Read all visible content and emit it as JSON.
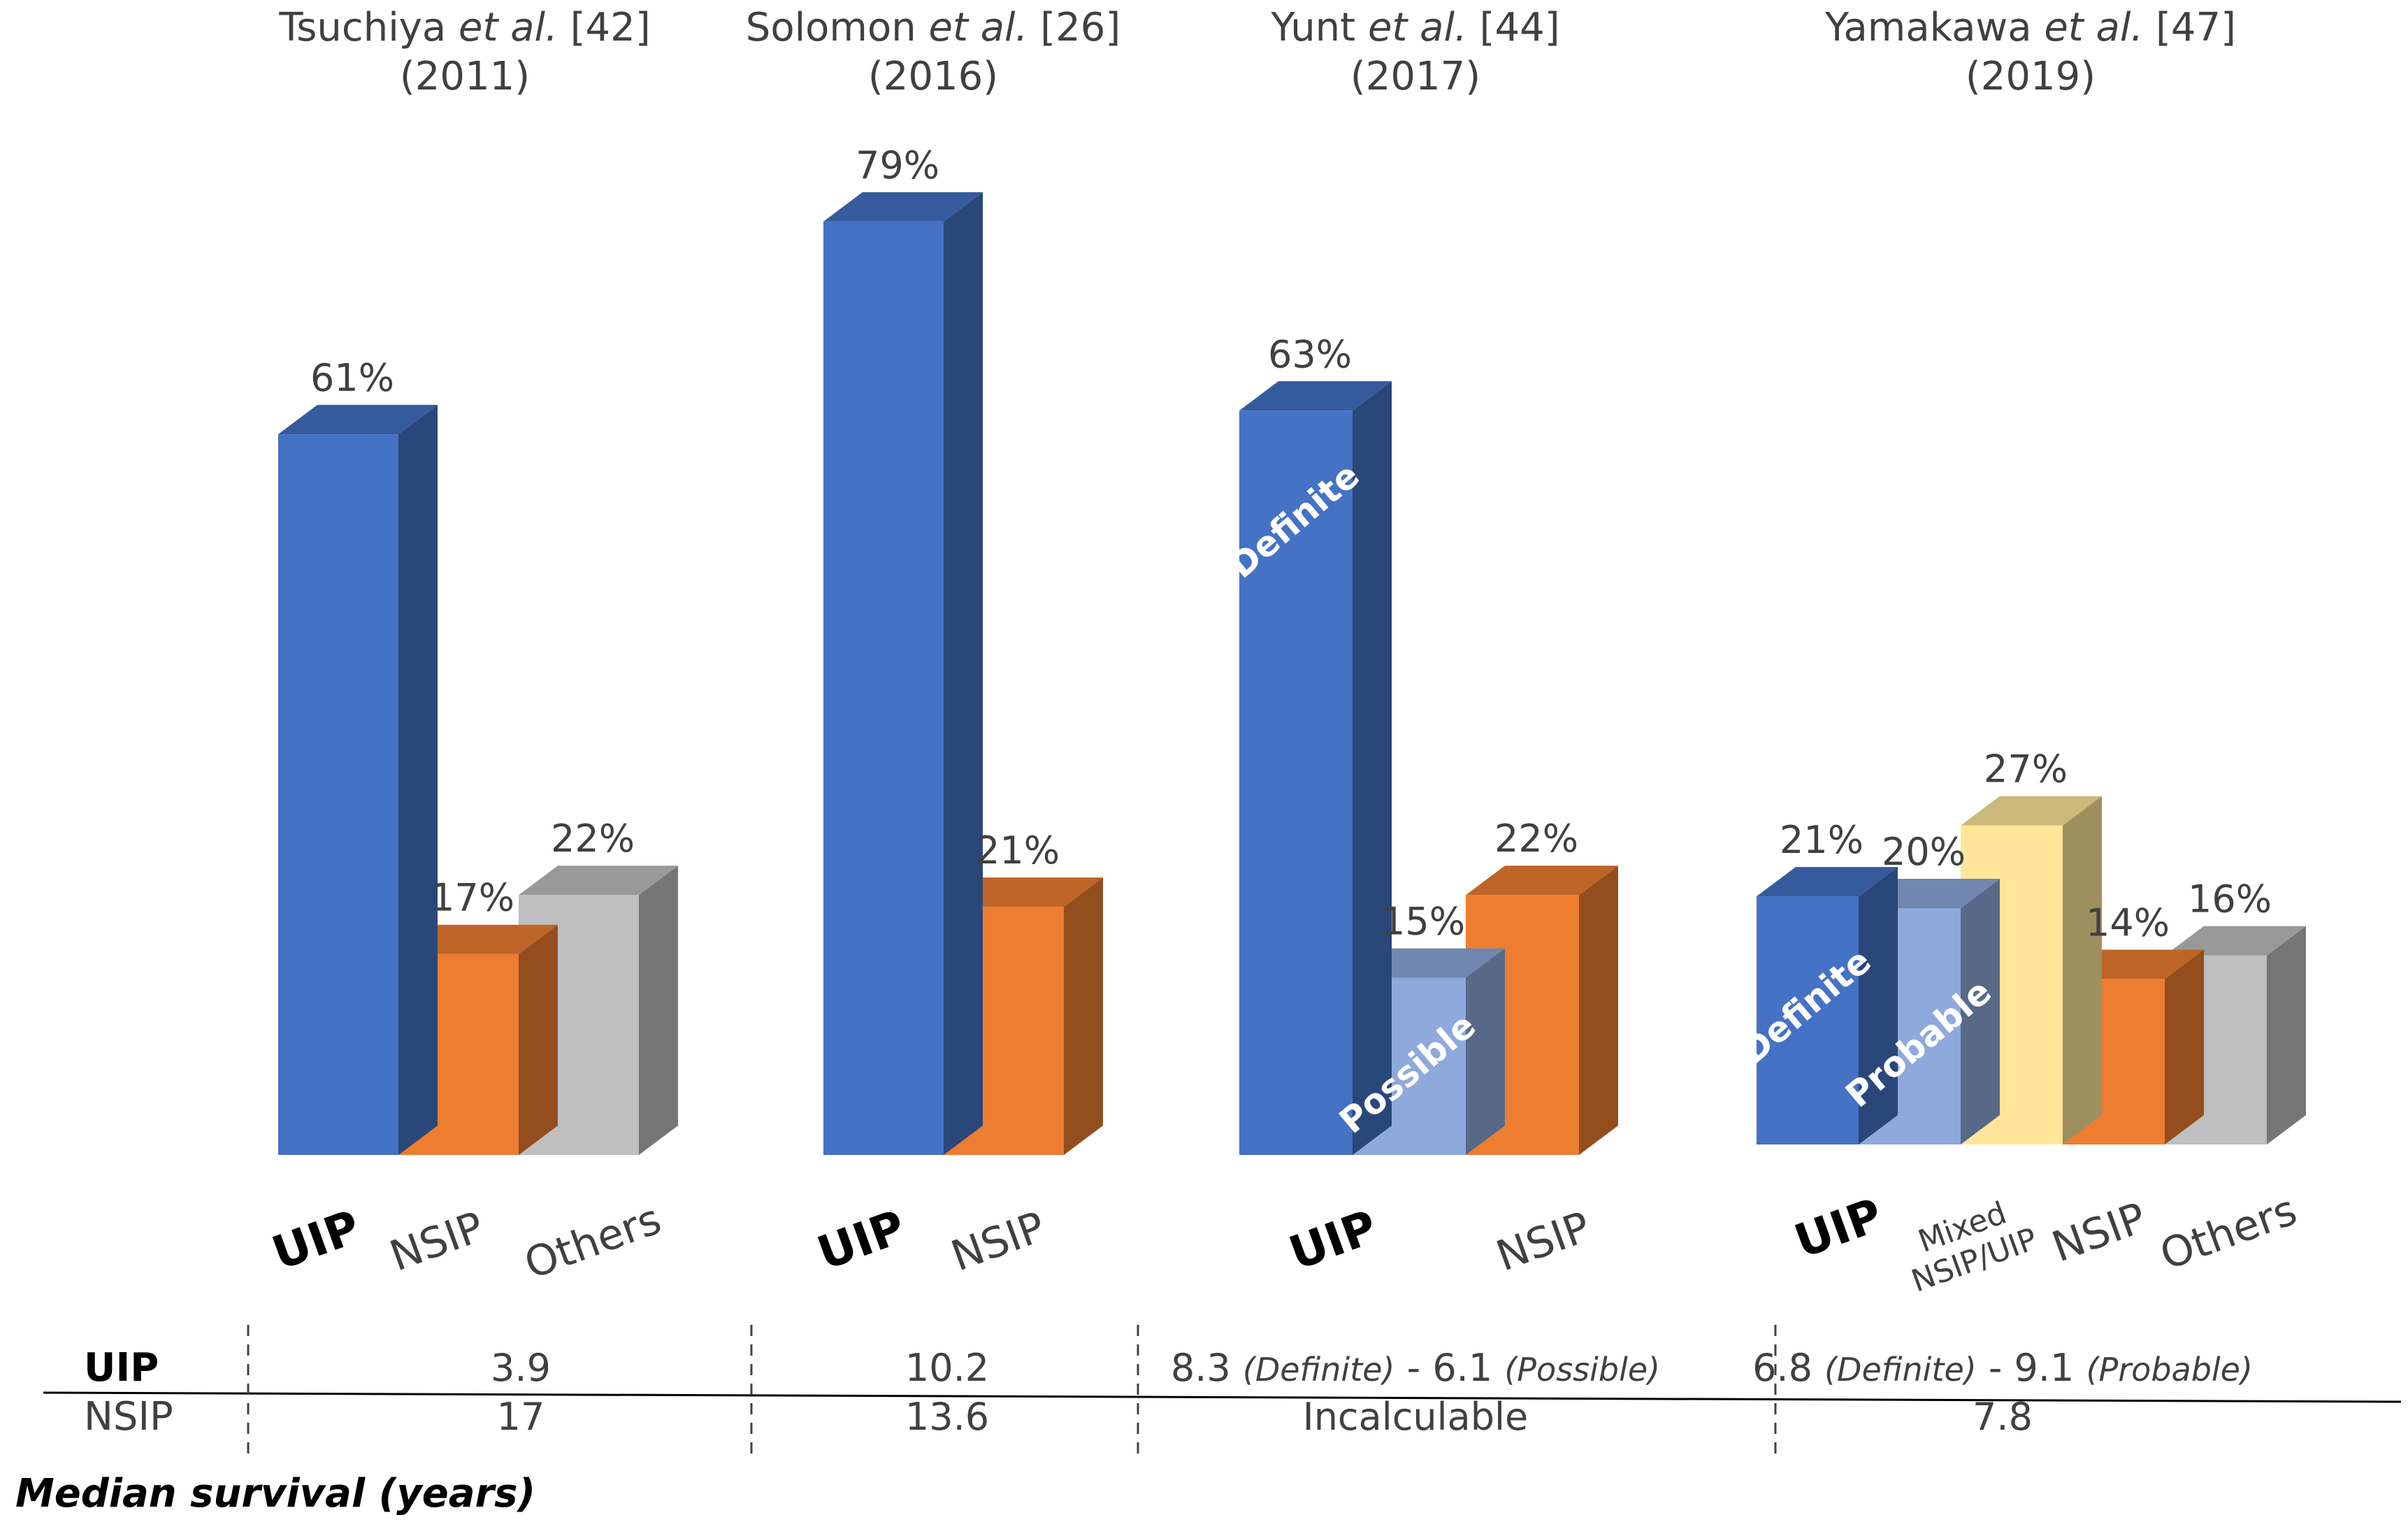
{
  "chart_data": {
    "type": "bar",
    "title": "",
    "ylabel": "",
    "ylim": [
      0,
      100
    ],
    "colors": {
      "uip": "#4472C4",
      "uip_light": "#8EA9DB",
      "nsip": "#ED7D31",
      "others": "#BFBFBF",
      "mixed": "#FFE699"
    },
    "groups": [
      {
        "study_name": "Tsuchiya",
        "etal": "et al.",
        "ref": "[42]",
        "year": "(2011)",
        "bars": [
          {
            "value": 61,
            "label": "61%",
            "color": "uip"
          },
          {
            "value": 17,
            "label": "17%",
            "color": "nsip"
          },
          {
            "value": 22,
            "label": "22%",
            "color": "others"
          }
        ],
        "categories": [
          {
            "text": [
              "UIP"
            ],
            "bold": true
          },
          {
            "text": [
              "NSIP"
            ],
            "bold": false
          },
          {
            "text": [
              "Others"
            ],
            "bold": false
          }
        ]
      },
      {
        "study_name": "Solomon",
        "etal": "et al.",
        "ref": "[26]",
        "year": "(2016)",
        "bars": [
          {
            "value": 79,
            "label": "79%",
            "color": "uip"
          },
          {
            "value": 21,
            "label": "21%",
            "color": "nsip"
          }
        ],
        "categories": [
          {
            "text": [
              "UIP"
            ],
            "bold": true
          },
          {
            "text": [
              "NSIP"
            ],
            "bold": false
          }
        ]
      },
      {
        "study_name": "Yunt",
        "etal": "et al.",
        "ref": "[44]",
        "year": "(2017)",
        "bars": [
          {
            "value": 63,
            "label": "63%",
            "color": "uip",
            "inner_label": "Definite"
          },
          {
            "value": 15,
            "label": "15%",
            "color": "uip_light",
            "inner_label": "Possible"
          },
          {
            "value": 22,
            "label": "22%",
            "color": "nsip"
          }
        ],
        "categories": [
          {
            "text": [
              "UIP"
            ],
            "bold": true
          },
          {
            "text": [
              "NSIP"
            ],
            "bold": false
          }
        ]
      },
      {
        "study_name": "Yamakawa",
        "etal": "et al.",
        "ref": "[47]",
        "year": "(2019)",
        "bars": [
          {
            "value": 21,
            "label": "21%",
            "color": "uip",
            "inner_label": "Definite"
          },
          {
            "value": 20,
            "label": "20%",
            "color": "uip_light",
            "inner_label": "Probable"
          },
          {
            "value": 27,
            "label": "27%",
            "color": "mixed"
          },
          {
            "value": 14,
            "label": "14%",
            "color": "nsip"
          },
          {
            "value": 16,
            "label": "16%",
            "color": "others"
          }
        ],
        "categories": [
          {
            "text": [
              "UIP"
            ],
            "bold": true
          },
          {
            "text": [
              "Mixed",
              "NSIP/UIP"
            ],
            "bold": false
          },
          {
            "text": [
              "NSIP"
            ],
            "bold": false
          },
          {
            "text": [
              "Others"
            ],
            "bold": false
          }
        ]
      }
    ],
    "survival_table": {
      "title": "Median survival (years)",
      "rows": [
        {
          "label": "UIP",
          "cells": [
            [
              {
                "t": "3.9"
              }
            ],
            [
              {
                "t": "10.2"
              }
            ],
            [
              {
                "t": "8.3 "
              },
              {
                "t": "(Definite)",
                "i": true
              },
              {
                "t": " - 6.1 "
              },
              {
                "t": "(Possible)",
                "i": true
              }
            ],
            [
              {
                "t": "6.8 "
              },
              {
                "t": "(Definite)",
                "i": true
              },
              {
                "t": " - 9.1 "
              },
              {
                "t": "(Probable)",
                "i": true
              }
            ]
          ]
        },
        {
          "label": "NSIP",
          "cells": [
            [
              {
                "t": "17"
              }
            ],
            [
              {
                "t": "13.6"
              }
            ],
            [
              {
                "t": "Incalculable"
              }
            ],
            [
              {
                "t": "7.8"
              }
            ]
          ]
        }
      ]
    }
  }
}
